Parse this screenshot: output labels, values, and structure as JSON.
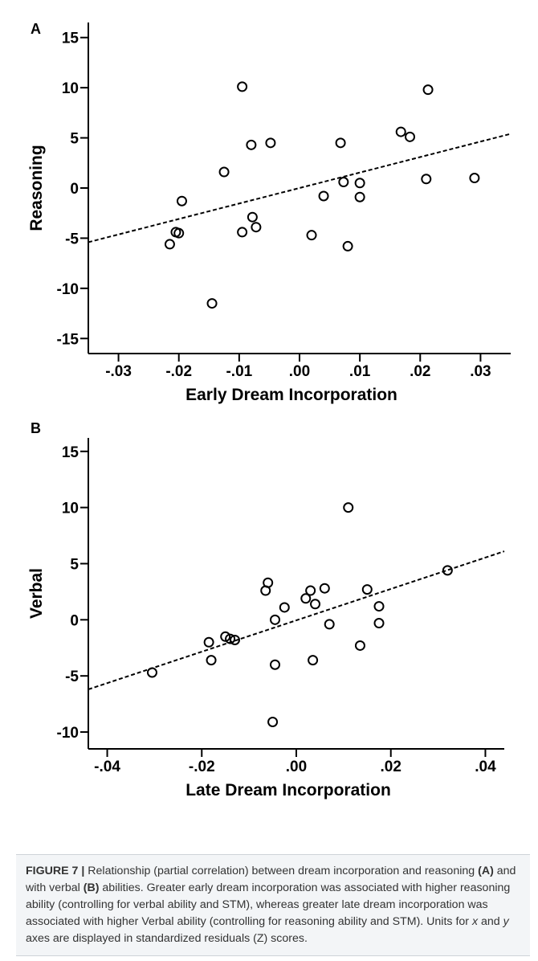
{
  "chart_data": [
    {
      "type": "scatter",
      "panel_label": "A",
      "xlabel": "Early Dream Incorporation",
      "ylabel": "Reasoning",
      "xlim": [
        -0.035,
        0.035
      ],
      "ylim": [
        -16.5,
        16.5
      ],
      "xticks": [
        -0.03,
        -0.02,
        -0.01,
        0.0,
        0.01,
        0.02,
        0.03
      ],
      "xtick_labels": [
        "-.03",
        "-.02",
        "-.01",
        ".00",
        ".01",
        ".02",
        ".03"
      ],
      "yticks": [
        15,
        10,
        5,
        0,
        -5,
        -10,
        -15
      ],
      "ytick_labels": [
        "15",
        "10",
        "5",
        "0",
        "-5",
        "-10",
        "-15"
      ],
      "points": [
        {
          "x": -0.0215,
          "y": -5.6
        },
        {
          "x": -0.0205,
          "y": -4.4
        },
        {
          "x": -0.02,
          "y": -4.5
        },
        {
          "x": -0.0195,
          "y": -1.3
        },
        {
          "x": -0.0145,
          "y": -11.5
        },
        {
          "x": -0.0125,
          "y": 1.6
        },
        {
          "x": -0.0095,
          "y": 10.1
        },
        {
          "x": -0.0095,
          "y": -4.4
        },
        {
          "x": -0.008,
          "y": 4.3
        },
        {
          "x": -0.0078,
          "y": -2.9
        },
        {
          "x": -0.0072,
          "y": -3.9
        },
        {
          "x": -0.0048,
          "y": 4.5
        },
        {
          "x": 0.002,
          "y": -4.7
        },
        {
          "x": 0.004,
          "y": -0.8
        },
        {
          "x": 0.0068,
          "y": 4.5
        },
        {
          "x": 0.0073,
          "y": 0.6
        },
        {
          "x": 0.008,
          "y": -5.8
        },
        {
          "x": 0.01,
          "y": 0.5
        },
        {
          "x": 0.01,
          "y": -0.9
        },
        {
          "x": 0.0168,
          "y": 5.6
        },
        {
          "x": 0.0183,
          "y": 5.1
        },
        {
          "x": 0.021,
          "y": 0.9
        },
        {
          "x": 0.0213,
          "y": 9.8
        },
        {
          "x": 0.029,
          "y": 1.0
        }
      ],
      "fit_line": [
        {
          "x": -0.035,
          "y": -5.4
        },
        {
          "x": 0.035,
          "y": 5.4
        }
      ]
    },
    {
      "type": "scatter",
      "panel_label": "B",
      "xlabel": "Late Dream Incorporation",
      "ylabel": "Verbal",
      "xlim": [
        -0.044,
        0.044
      ],
      "ylim": [
        -11.5,
        16.2
      ],
      "xticks": [
        -0.04,
        -0.02,
        0.0,
        0.02,
        0.04
      ],
      "xtick_labels": [
        "-.04",
        "-.02",
        ".00",
        ".02",
        ".04"
      ],
      "yticks": [
        15,
        10,
        5,
        0,
        -5,
        -10
      ],
      "ytick_labels": [
        "15",
        "10",
        "5",
        "0",
        "-5",
        "-10"
      ],
      "points": [
        {
          "x": -0.0305,
          "y": -4.7
        },
        {
          "x": -0.0185,
          "y": -2.0
        },
        {
          "x": -0.018,
          "y": -3.6
        },
        {
          "x": -0.015,
          "y": -1.5
        },
        {
          "x": -0.014,
          "y": -1.7
        },
        {
          "x": -0.013,
          "y": -1.8
        },
        {
          "x": -0.0065,
          "y": 2.6
        },
        {
          "x": -0.006,
          "y": 3.3
        },
        {
          "x": -0.005,
          "y": -9.1
        },
        {
          "x": -0.0045,
          "y": -4.0
        },
        {
          "x": -0.0045,
          "y": 0.0
        },
        {
          "x": -0.0025,
          "y": 1.1
        },
        {
          "x": 0.002,
          "y": 1.9
        },
        {
          "x": 0.003,
          "y": 2.6
        },
        {
          "x": 0.0035,
          "y": -3.6
        },
        {
          "x": 0.004,
          "y": 1.4
        },
        {
          "x": 0.006,
          "y": 2.8
        },
        {
          "x": 0.007,
          "y": -0.4
        },
        {
          "x": 0.011,
          "y": 10.0
        },
        {
          "x": 0.0135,
          "y": -2.3
        },
        {
          "x": 0.015,
          "y": 2.7
        },
        {
          "x": 0.0175,
          "y": 1.2
        },
        {
          "x": 0.0175,
          "y": -0.3
        },
        {
          "x": 0.032,
          "y": 4.4
        }
      ],
      "fit_line": [
        {
          "x": -0.044,
          "y": -6.2
        },
        {
          "x": 0.044,
          "y": 6.1
        }
      ]
    }
  ],
  "caption": {
    "figure_label": "FIGURE 7 |",
    "text_1": " Relationship (partial correlation) between dream incorporation and reasoning ",
    "bold_a": "(A)",
    "text_2": " and with verbal ",
    "bold_b": "(B)",
    "text_3": " abilities. Greater early dream incorporation was associated with higher reasoning ability (controlling for verbal ability and STM), whereas greater late dream incorporation was associated with higher Verbal ability (controlling for reasoning ability and STM). Units for ",
    "x_var": "x",
    "text_4": " and ",
    "y_var": "y",
    "text_5": " axes are displayed in standardized residuals (Z) scores."
  }
}
